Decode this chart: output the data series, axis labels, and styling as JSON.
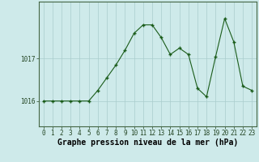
{
  "x": [
    0,
    1,
    2,
    3,
    4,
    5,
    6,
    7,
    8,
    9,
    10,
    11,
    12,
    13,
    14,
    15,
    16,
    17,
    18,
    19,
    20,
    21,
    22,
    23
  ],
  "y": [
    1016.0,
    1016.0,
    1016.0,
    1016.0,
    1016.0,
    1016.0,
    1016.25,
    1016.55,
    1016.85,
    1017.2,
    1017.6,
    1017.8,
    1017.8,
    1017.5,
    1017.1,
    1017.25,
    1017.1,
    1016.3,
    1016.1,
    1017.05,
    1017.95,
    1017.4,
    1016.35,
    1016.25
  ],
  "line_color": "#1a5c1a",
  "marker": "+",
  "marker_size": 3.5,
  "marker_lw": 1.0,
  "line_width": 0.8,
  "bg_color": "#ceeaea",
  "grid_color": "#aacccc",
  "yticks": [
    1016,
    1017
  ],
  "xticks": [
    0,
    1,
    2,
    3,
    4,
    5,
    6,
    7,
    8,
    9,
    10,
    11,
    12,
    13,
    14,
    15,
    16,
    17,
    18,
    19,
    20,
    21,
    22,
    23
  ],
  "xlabel": "Graphe pression niveau de la mer (hPa)",
  "ylim": [
    1015.4,
    1018.35
  ],
  "xlim": [
    -0.5,
    23.5
  ],
  "tick_fontsize": 5.5,
  "xlabel_fontsize": 7.0,
  "figure_width": 3.2,
  "figure_height": 2.0,
  "dpi": 100
}
